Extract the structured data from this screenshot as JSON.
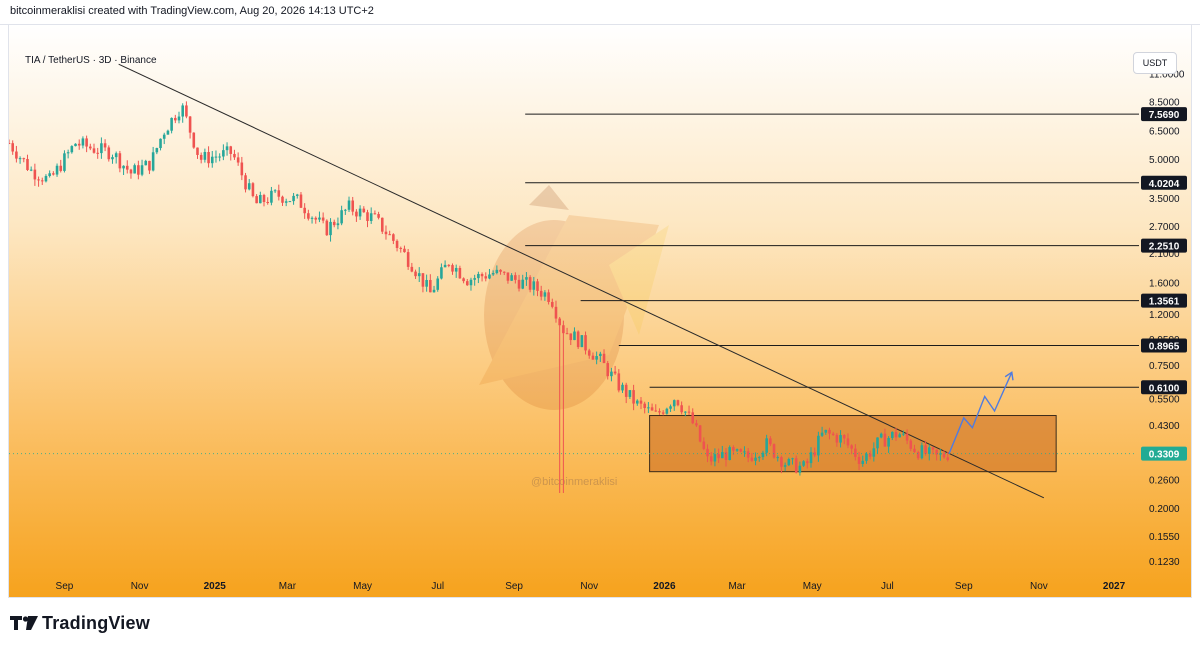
{
  "header": {
    "attribution": "bitcoinmeraklisi created with TradingView.com, Aug 20, 2026 14:13 UTC+2"
  },
  "symbol_line": "TIA / TetherUS · 3D · Binance",
  "currency_button": "USDT",
  "watermark_text": "@bitcoinmeraklisi",
  "footer": {
    "brand": "TradingView"
  },
  "colors": {
    "bg_top": "#ffffff",
    "bg_bottom": "#f6a21c",
    "candle_up": "#26a69a",
    "candle_down": "#ef5350",
    "range_box": "#c8681e",
    "projection": "#4f7be0",
    "price_badge": "#22ab94"
  },
  "chart_data": {
    "type": "candlestick",
    "title": "TIA / TetherUS · 3D · Binance",
    "y_scale": "log",
    "ylim": [
      0.11,
      16.0
    ],
    "y_ticks": [
      "11.0000",
      "8.5000",
      "6.5000",
      "5.0000",
      "3.5000",
      "2.7000",
      "2.1000",
      "1.6000",
      "1.2000",
      "0.9500",
      "0.7500",
      "0.5500",
      "0.4300",
      "0.2600",
      "0.2000",
      "0.1550",
      "0.1230"
    ],
    "x_axis_labels": [
      {
        "label": "Sep",
        "date": "2024-09-01"
      },
      {
        "label": "Nov",
        "date": "2024-11-01"
      },
      {
        "label": "2025",
        "date": "2025-01-01",
        "bold": true
      },
      {
        "label": "Mar",
        "date": "2025-03-01"
      },
      {
        "label": "May",
        "date": "2025-05-01"
      },
      {
        "label": "Jul",
        "date": "2025-07-01"
      },
      {
        "label": "Sep",
        "date": "2025-09-01"
      },
      {
        "label": "Nov",
        "date": "2025-11-01"
      },
      {
        "label": "2026",
        "date": "2026-01-01",
        "bold": true
      },
      {
        "label": "Mar",
        "date": "2026-03-01"
      },
      {
        "label": "May",
        "date": "2026-05-01"
      },
      {
        "label": "Jul",
        "date": "2026-07-01"
      },
      {
        "label": "Sep",
        "date": "2026-09-01"
      },
      {
        "label": "Nov",
        "date": "2026-11-01"
      },
      {
        "label": "2027",
        "date": "2027-01-01",
        "bold": true
      }
    ],
    "x_range": [
      "2024-07-18",
      "2027-01-18"
    ],
    "price_path": [
      {
        "date": "2024-07-18",
        "price": 5.8
      },
      {
        "date": "2024-08-05",
        "price": 4.5
      },
      {
        "date": "2024-08-20",
        "price": 4.1
      },
      {
        "date": "2024-09-10",
        "price": 5.8
      },
      {
        "date": "2024-09-25",
        "price": 5.5
      },
      {
        "date": "2024-10-10",
        "price": 5.3
      },
      {
        "date": "2024-10-25",
        "price": 4.4
      },
      {
        "date": "2024-11-10",
        "price": 4.8
      },
      {
        "date": "2024-11-20",
        "price": 6.4
      },
      {
        "date": "2024-12-05",
        "price": 8.2
      },
      {
        "date": "2024-12-20",
        "price": 5.0
      },
      {
        "date": "2025-01-15",
        "price": 5.3
      },
      {
        "date": "2025-02-03",
        "price": 3.3
      },
      {
        "date": "2025-02-20",
        "price": 3.6
      },
      {
        "date": "2025-03-10",
        "price": 3.4
      },
      {
        "date": "2025-04-01",
        "price": 2.6
      },
      {
        "date": "2025-04-20",
        "price": 3.2
      },
      {
        "date": "2025-05-10",
        "price": 2.9
      },
      {
        "date": "2025-05-25",
        "price": 2.4
      },
      {
        "date": "2025-06-10",
        "price": 1.9
      },
      {
        "date": "2025-06-25",
        "price": 1.45
      },
      {
        "date": "2025-07-10",
        "price": 1.95
      },
      {
        "date": "2025-07-25",
        "price": 1.65
      },
      {
        "date": "2025-08-15",
        "price": 1.75
      },
      {
        "date": "2025-09-01",
        "price": 1.65
      },
      {
        "date": "2025-09-15",
        "price": 1.55
      },
      {
        "date": "2025-10-01",
        "price": 1.4
      },
      {
        "date": "2025-10-10",
        "price": 1.05
      },
      {
        "date": "2025-10-25",
        "price": 0.93
      },
      {
        "date": "2025-11-10",
        "price": 0.78
      },
      {
        "date": "2025-11-25",
        "price": 0.62
      },
      {
        "date": "2025-12-10",
        "price": 0.52
      },
      {
        "date": "2025-12-25",
        "price": 0.47
      },
      {
        "date": "2026-01-10",
        "price": 0.56
      },
      {
        "date": "2026-01-25",
        "price": 0.43
      },
      {
        "date": "2026-02-05",
        "price": 0.31
      },
      {
        "date": "2026-02-20",
        "price": 0.33
      },
      {
        "date": "2026-03-10",
        "price": 0.32
      },
      {
        "date": "2026-03-25",
        "price": 0.36
      },
      {
        "date": "2026-04-10",
        "price": 0.3
      },
      {
        "date": "2026-04-25",
        "price": 0.29
      },
      {
        "date": "2026-05-10",
        "price": 0.4
      },
      {
        "date": "2026-05-25",
        "price": 0.38
      },
      {
        "date": "2026-06-10",
        "price": 0.31
      },
      {
        "date": "2026-06-25",
        "price": 0.37
      },
      {
        "date": "2026-07-10",
        "price": 0.4
      },
      {
        "date": "2026-07-25",
        "price": 0.34
      },
      {
        "date": "2026-08-10",
        "price": 0.32
      },
      {
        "date": "2026-08-20",
        "price": 0.3309
      }
    ],
    "spike_lows": [
      {
        "date": "2025-10-10",
        "low": 0.23
      }
    ],
    "horizontal_levels": [
      7.569,
      4.0204,
      2.251,
      1.3561,
      0.8965,
      0.61
    ],
    "horizontal_level_labels": [
      "7.5690",
      "4.0204",
      "2.2510",
      "1.3561",
      "0.8965",
      "0.6100"
    ],
    "current_price": 0.3309,
    "current_price_label": "0.3309",
    "trendline": {
      "start": {
        "date": "2024-10-15",
        "price": 12.0
      },
      "end": {
        "date": "2026-11-05",
        "price": 0.22
      }
    },
    "range_box": {
      "date_start": "2025-12-20",
      "date_end": "2026-11-15",
      "price_low": 0.28,
      "price_high": 0.47
    },
    "projection_path": [
      {
        "date": "2026-08-20",
        "price": 0.33
      },
      {
        "date": "2026-09-01",
        "price": 0.46
      },
      {
        "date": "2026-09-08",
        "price": 0.42
      },
      {
        "date": "2026-09-18",
        "price": 0.56
      },
      {
        "date": "2026-09-26",
        "price": 0.49
      },
      {
        "date": "2026-10-10",
        "price": 0.7
      }
    ],
    "grid": false,
    "legend": "none"
  }
}
